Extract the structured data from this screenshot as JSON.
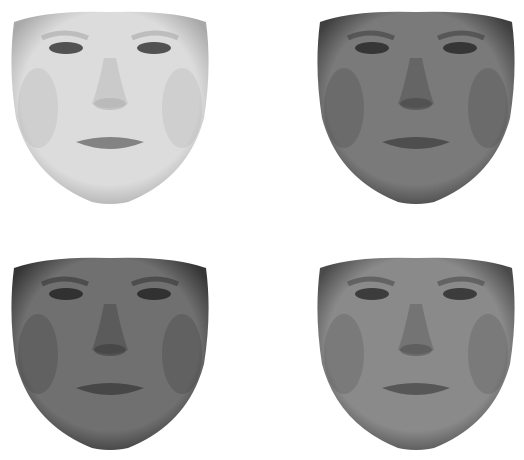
{
  "faces": [
    {
      "id": "face-1",
      "tone": "light",
      "skin": "#dcdcdc",
      "shade": "#a9a9a9",
      "feature": "#3a3a3a"
    },
    {
      "id": "face-2",
      "tone": "dark",
      "skin": "#7a7a7a",
      "shade": "#3f3f3f",
      "feature": "#2a2a2a"
    },
    {
      "id": "face-3",
      "tone": "dark",
      "skin": "#707070",
      "shade": "#353535",
      "feature": "#262626"
    },
    {
      "id": "face-4",
      "tone": "medium",
      "skin": "#8a8a8a",
      "shade": "#4a4a4a",
      "feature": "#2e2e2e"
    }
  ]
}
